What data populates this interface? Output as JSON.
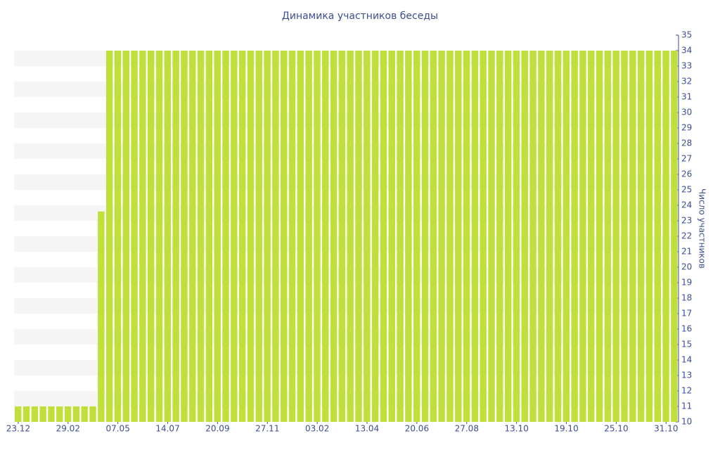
{
  "chart_data": {
    "type": "bar",
    "title": "Динамика участников беседы",
    "y_label": "Число участников",
    "categories": [
      "23.12",
      null,
      null,
      null,
      null,
      null,
      "29.02",
      null,
      null,
      null,
      null,
      null,
      "07.05",
      null,
      null,
      null,
      null,
      null,
      "14.07",
      null,
      null,
      null,
      null,
      null,
      "20.09",
      null,
      null,
      null,
      null,
      null,
      "27.11",
      null,
      null,
      null,
      null,
      null,
      "03.02",
      null,
      null,
      null,
      null,
      null,
      "13.04",
      null,
      null,
      null,
      null,
      null,
      "20.06",
      null,
      null,
      null,
      null,
      null,
      "27.08",
      null,
      null,
      null,
      null,
      null,
      "13.10",
      null,
      null,
      null,
      null,
      null,
      "19.10",
      null,
      null,
      null,
      null,
      null,
      "25.10",
      null,
      null,
      null,
      null,
      null,
      "31.10",
      null
    ],
    "values": [
      11,
      11,
      11,
      11,
      11,
      11,
      11,
      11,
      11,
      11,
      23.6,
      34,
      34,
      34,
      34,
      34,
      34,
      34,
      34,
      34,
      34,
      34,
      34,
      34,
      34,
      34,
      34,
      34,
      34,
      34,
      34,
      34,
      34,
      34,
      34,
      34,
      34,
      34,
      34,
      34,
      34,
      34,
      34,
      34,
      34,
      34,
      34,
      34,
      34,
      34,
      34,
      34,
      34,
      34,
      34,
      34,
      34,
      34,
      34,
      34,
      34,
      34,
      34,
      34,
      34,
      34,
      34,
      34,
      34,
      34,
      34,
      34,
      34,
      34,
      34,
      34,
      34,
      34,
      34,
      34
    ],
    "color": "#bfe03a",
    "ylim": [
      10,
      35
    ],
    "yticks": [
      10,
      11,
      12,
      13,
      14,
      15,
      16,
      17,
      18,
      19,
      20,
      21,
      22,
      23,
      24,
      25,
      26,
      27,
      28,
      29,
      30,
      31,
      32,
      33,
      34,
      35
    ]
  }
}
